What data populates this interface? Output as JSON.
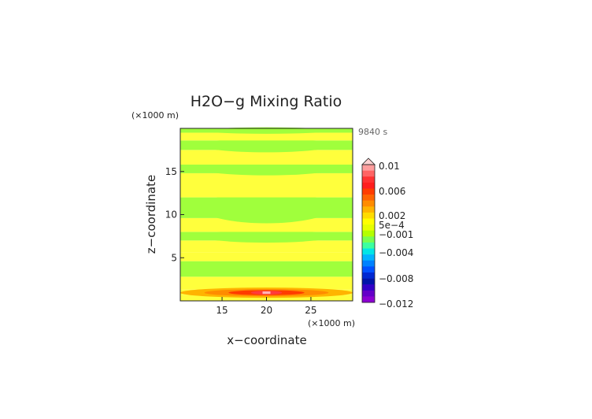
{
  "chart_data": {
    "type": "heatmap",
    "title": "H2O−g Mixing Ratio",
    "time_label": "9840 s",
    "xlabel": "x−coordinate",
    "ylabel": "z−coordinate",
    "x_unit": "(×1000 m)",
    "y_unit": "(×1000 m)",
    "xlim": [
      10.3,
      29.7
    ],
    "ylim": [
      0,
      20
    ],
    "x_ticks": [
      "15",
      "20",
      "25"
    ],
    "y_ticks": [
      "5",
      "10",
      "15"
    ],
    "bands": [
      {
        "z0": 0.0,
        "z1": 0.7,
        "level": "yellow"
      },
      {
        "z0": 0.7,
        "z1": 1.3,
        "level": "orange-red"
      },
      {
        "z0": 1.3,
        "z1": 2.8,
        "level": "yellow"
      },
      {
        "z0": 2.8,
        "z1": 4.6,
        "level": "green"
      },
      {
        "z0": 4.6,
        "z1": 5.6,
        "level": "yellow"
      },
      {
        "z0": 5.6,
        "z1": 7.0,
        "level": "yellow"
      },
      {
        "z0": 7.0,
        "z1": 8.0,
        "level": "green"
      },
      {
        "z0": 8.0,
        "z1": 9.6,
        "level": "yellow"
      },
      {
        "z0": 9.6,
        "z1": 12.0,
        "level": "green"
      },
      {
        "z0": 12.0,
        "z1": 14.8,
        "level": "yellow"
      },
      {
        "z0": 14.8,
        "z1": 15.8,
        "level": "green"
      },
      {
        "z0": 15.8,
        "z1": 17.5,
        "level": "yellow"
      },
      {
        "z0": 17.5,
        "z1": 18.6,
        "level": "green"
      },
      {
        "z0": 18.6,
        "z1": 19.5,
        "level": "yellow"
      },
      {
        "z0": 19.5,
        "z1": 20.0,
        "level": "green"
      }
    ],
    "colorbar": {
      "labels": [
        "0.01",
        "0.006",
        "0.002",
        "5e−4",
        "−0.001",
        "−0.004",
        "−0.008",
        "−0.012"
      ],
      "colors": [
        "#ff9d9d",
        "#ff6464",
        "#ff3232",
        "#ff1e1e",
        "#ff3c00",
        "#ff6400",
        "#ff8c00",
        "#ffb400",
        "#ffdc00",
        "#ffff00",
        "#e6ff00",
        "#b4ff00",
        "#78ff50",
        "#3cffa0",
        "#00e6e6",
        "#00b4ff",
        "#0082ff",
        "#0050ff",
        "#0028d2",
        "#0014aa",
        "#3200c8",
        "#6400c8",
        "#8c00d2"
      ]
    },
    "colors": {
      "yellow": "#ffff3c",
      "green": "#a0ff3c",
      "orange": "#ffb400",
      "red": "#ff3c00",
      "pink": "#ffb4b4"
    }
  }
}
